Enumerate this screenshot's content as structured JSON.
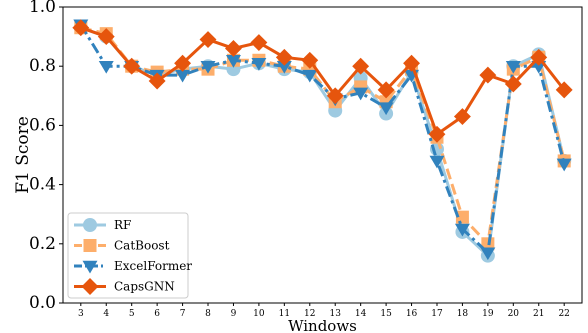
{
  "chart_data": {
    "type": "line",
    "xlabel": "Windows",
    "ylabel": "F1 Score",
    "x": [
      3,
      4,
      5,
      6,
      7,
      8,
      9,
      10,
      11,
      12,
      13,
      14,
      15,
      16,
      17,
      18,
      19,
      20,
      21,
      22
    ],
    "ylim": [
      0.0,
      1.0
    ],
    "xlim": [
      2.3,
      22.7
    ],
    "yticks": [
      "0.0",
      "0.2",
      "0.4",
      "0.6",
      "0.8",
      "1.0"
    ],
    "legend_position": "lower-left",
    "grid": false,
    "series": [
      {
        "name": "RF",
        "color": "#9ecae1",
        "marker": "circle",
        "dash": "solid",
        "values": [
          0.93,
          0.9,
          0.8,
          0.77,
          0.79,
          0.8,
          0.79,
          0.81,
          0.79,
          0.78,
          0.65,
          0.76,
          0.64,
          0.78,
          0.52,
          0.24,
          0.16,
          0.8,
          0.84,
          0.48
        ]
      },
      {
        "name": "CatBoost",
        "color": "#fdae6b",
        "marker": "square",
        "dash": "dashed",
        "values": [
          0.93,
          0.91,
          0.8,
          0.78,
          0.79,
          0.79,
          0.82,
          0.82,
          0.8,
          0.79,
          0.68,
          0.73,
          0.68,
          0.79,
          0.56,
          0.29,
          0.2,
          0.79,
          0.83,
          0.48
        ]
      },
      {
        "name": "ExcelFormer",
        "color": "#3182bd",
        "marker": "triangle-down",
        "dash": "dashdot",
        "values": [
          0.94,
          0.8,
          0.8,
          0.77,
          0.77,
          0.8,
          0.82,
          0.81,
          0.8,
          0.77,
          0.69,
          0.71,
          0.66,
          0.77,
          0.48,
          0.25,
          0.17,
          0.8,
          0.8,
          0.47
        ]
      },
      {
        "name": "CapsGNN",
        "color": "#e6550d",
        "marker": "diamond",
        "dash": "solid",
        "values": [
          0.93,
          0.9,
          0.8,
          0.75,
          0.81,
          0.89,
          0.86,
          0.88,
          0.83,
          0.82,
          0.7,
          0.8,
          0.72,
          0.81,
          0.57,
          0.63,
          0.77,
          0.74,
          0.83,
          0.72
        ]
      }
    ]
  }
}
